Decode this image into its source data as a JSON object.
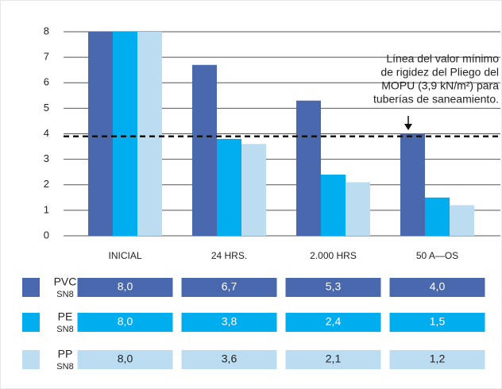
{
  "chart_data": {
    "type": "bar",
    "categories": [
      "INICIAL",
      "24 HRS.",
      "2.000 HRS",
      "50 A—OS"
    ],
    "series": [
      {
        "name": "PVC",
        "subname": "SN8",
        "color": "#4a68ad",
        "values": [
          8.0,
          6.7,
          5.3,
          4.0
        ],
        "value_labels": [
          "8,0",
          "6,7",
          "5,3",
          "4,0"
        ]
      },
      {
        "name": "PE",
        "subname": "SN8",
        "color": "#00aeef",
        "values": [
          8.0,
          3.8,
          2.4,
          1.5
        ],
        "value_labels": [
          "8,0",
          "3,8",
          "2,4",
          "1,5"
        ]
      },
      {
        "name": "PP",
        "subname": "SN8",
        "color": "#bcdcf2",
        "values": [
          8.0,
          3.6,
          2.1,
          1.2
        ],
        "value_labels": [
          "8,0",
          "3,6",
          "2,1",
          "1,2"
        ]
      }
    ],
    "ylim": [
      0,
      8
    ],
    "yticks": [
      0,
      1,
      2,
      3,
      4,
      5,
      6,
      7,
      8
    ],
    "grid": true,
    "threshold": 3.9,
    "annotation": [
      "Línea del valor mínimo",
      "de rigidez del Pliego del",
      "MOPU (3,9 kN/m²) para",
      "tuberías de saneamiento."
    ]
  }
}
